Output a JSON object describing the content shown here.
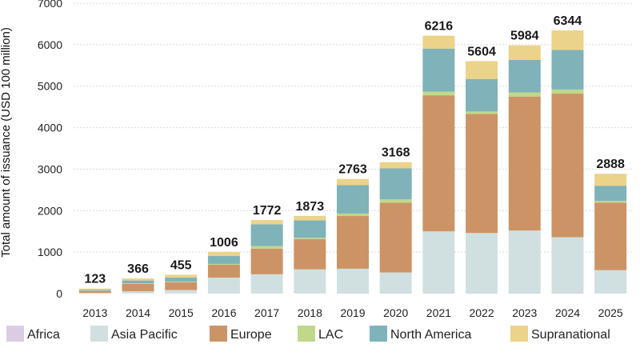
{
  "chart_data": {
    "type": "bar",
    "stacked": true,
    "title": "",
    "xlabel": "",
    "ylabel": "Total amount of issuance (USD 100 million)",
    "ylim": [
      0,
      7000
    ],
    "yticks": [
      0,
      1000,
      2000,
      3000,
      4000,
      5000,
      6000,
      7000
    ],
    "grid": true,
    "legend_position": "bottom",
    "categories": [
      "2013",
      "2014",
      "2015",
      "2016",
      "2017",
      "2018",
      "2019",
      "2020",
      "2021",
      "2022",
      "2023",
      "2024",
      "2025"
    ],
    "totals": [
      123,
      366,
      455,
      1006,
      1772,
      1873,
      2763,
      3168,
      6216,
      5604,
      5984,
      6344,
      2888
    ],
    "series": [
      {
        "name": "Africa",
        "color": "#d9cde3",
        "values": [
          5,
          5,
          5,
          5,
          5,
          5,
          10,
          10,
          10,
          10,
          10,
          10,
          5
        ]
      },
      {
        "name": "Asia Pacific",
        "color": "#d0e0e0",
        "values": [
          10,
          50,
          80,
          380,
          460,
          580,
          590,
          500,
          1490,
          1450,
          1510,
          1350,
          560
        ]
      },
      {
        "name": "Europe",
        "color": "#cc9466",
        "values": [
          50,
          180,
          190,
          310,
          620,
          730,
          1270,
          1680,
          3280,
          2870,
          3230,
          3460,
          1630
        ]
      },
      {
        "name": "LAC",
        "color": "#bfd88a",
        "values": [
          5,
          10,
          15,
          20,
          60,
          30,
          60,
          80,
          90,
          60,
          100,
          100,
          40
        ]
      },
      {
        "name": "North America",
        "color": "#7fb2b9",
        "values": [
          23,
          71,
          95,
          191,
          527,
          418,
          683,
          748,
          1036,
          784,
          784,
          954,
          365
        ]
      },
      {
        "name": "Supranational",
        "color": "#ebd38a",
        "values": [
          30,
          50,
          70,
          100,
          100,
          110,
          150,
          150,
          310,
          430,
          350,
          470,
          288
        ]
      }
    ]
  }
}
